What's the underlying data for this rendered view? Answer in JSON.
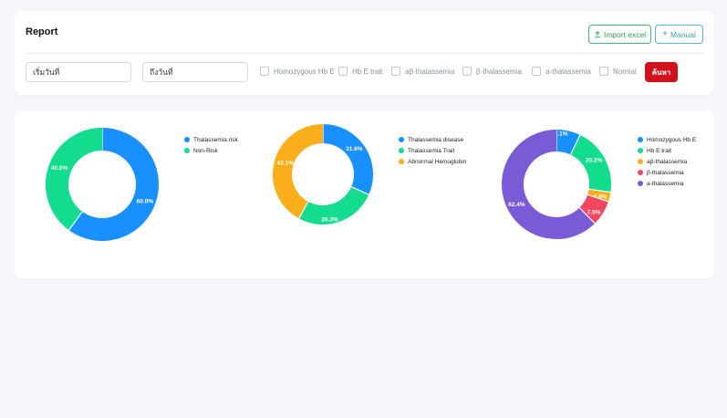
{
  "header": {
    "title": "Report",
    "import_label": "Import excel",
    "manual_label": "Manual"
  },
  "filters": {
    "date_from": "เริ่มวันที่",
    "date_to": "ถึงวันที่",
    "options": [
      {
        "label": "Homozygous Hb E",
        "checked": false
      },
      {
        "label": "Hb E trait",
        "checked": false
      },
      {
        "label": "aβ-thalassemia",
        "checked": false
      },
      {
        "label": "β-thalassemia",
        "checked": false
      },
      {
        "label": "a-thalassemia",
        "checked": false
      },
      {
        "label": "Normal",
        "checked": false
      }
    ],
    "search_label": "ค้นหา"
  },
  "chart_data": [
    {
      "type": "pie",
      "categories": [
        "Thalassemia risk",
        "Non-Risk"
      ],
      "values": [
        60.0,
        40.0
      ],
      "labels": [
        "60.0%",
        "40.0%"
      ],
      "colors": [
        "#1890ff",
        "#13dc8f"
      ],
      "legend": "right"
    },
    {
      "type": "pie",
      "categories": [
        "Thalassemia disease",
        "Thalassemia Trait",
        "Abnormal Hemoglobin"
      ],
      "values": [
        31.6,
        26.3,
        42.1
      ],
      "labels": [
        "31.6%",
        "26.3%",
        "42.1%"
      ],
      "colors": [
        "#1890ff",
        "#13dc8f",
        "#fbae1b"
      ],
      "legend": "right"
    },
    {
      "type": "pie",
      "categories": [
        "Homozygous Hb E",
        "Hb E trait",
        "aβ-thalassemia",
        "β-thalassemia",
        "a-thalassemia"
      ],
      "values": [
        7.1,
        20.2,
        2.8,
        7.5,
        62.4
      ],
      "labels": [
        "7.1%",
        "20.2%",
        "2.8%",
        "7.5%",
        "62.4%"
      ],
      "colors": [
        "#1890ff",
        "#13dc8f",
        "#fbae1b",
        "#f3475f",
        "#7a5bd6"
      ],
      "legend": "right"
    }
  ]
}
